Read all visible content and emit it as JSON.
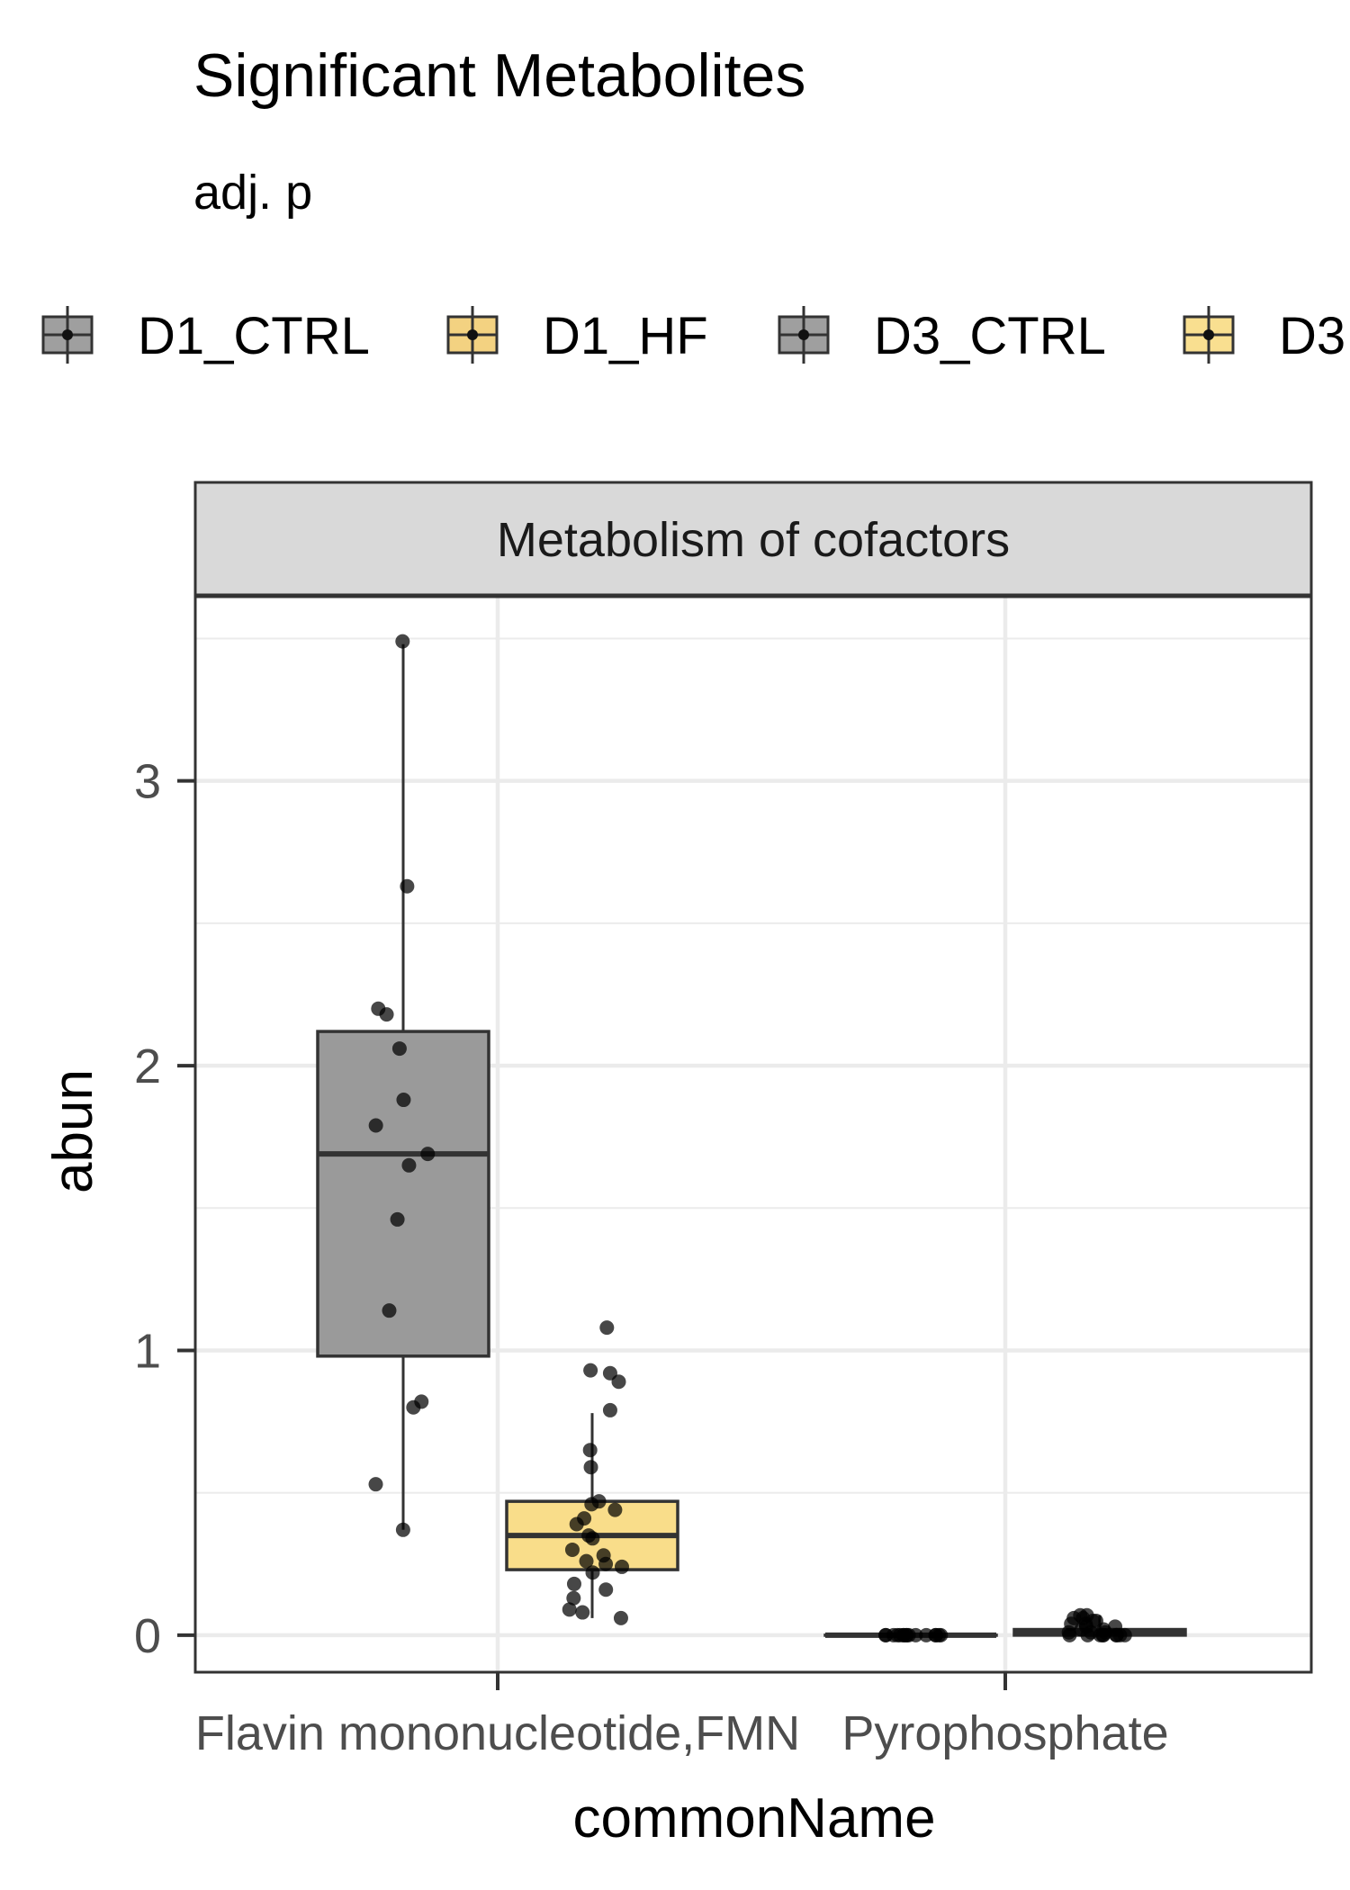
{
  "chart_data": {
    "type": "box",
    "title": "Significant Metabolites",
    "subtitle": "adj. p",
    "facet_label": "Metabolism of cofactors",
    "xlabel": "commonName",
    "ylabel": "abun",
    "categories": [
      "Flavin mononucleotide,FMN",
      "Pyrophosphate"
    ],
    "yticks": [
      0,
      1,
      2,
      3
    ],
    "ylim": [
      -0.13,
      3.65
    ],
    "grid": true,
    "legend_position": "top",
    "legend": [
      {
        "name": "D1_CTRL",
        "color": "#9a9a9a"
      },
      {
        "name": "D1_HF",
        "color": "#f2d07a"
      },
      {
        "name": "D3_CTRL",
        "color": "#9a9a9a"
      },
      {
        "name": "D3",
        "color": "#f9dd8a"
      }
    ],
    "boxes": [
      {
        "category": "Flavin mononucleotide,FMN",
        "group": "D1_CTRL",
        "color": "#9a9a9a",
        "whisker_low": 0.37,
        "q1": 0.98,
        "median": 1.69,
        "q3": 2.12,
        "whisker_high": 3.48,
        "points": [
          3.49,
          2.63,
          2.2,
          2.18,
          2.06,
          1.88,
          1.79,
          1.69,
          1.65,
          1.46,
          1.14,
          0.82,
          0.8,
          0.53,
          0.37
        ]
      },
      {
        "category": "Flavin mononucleotide,FMN",
        "group": "D1_HF",
        "color": "#f9dd8a",
        "whisker_low": 0.06,
        "q1": 0.23,
        "median": 0.35,
        "q3": 0.47,
        "whisker_high": 0.78,
        "points": [
          1.08,
          0.93,
          0.92,
          0.89,
          0.79,
          0.65,
          0.59,
          0.47,
          0.46,
          0.44,
          0.41,
          0.39,
          0.35,
          0.34,
          0.3,
          0.28,
          0.26,
          0.25,
          0.24,
          0.22,
          0.18,
          0.16,
          0.13,
          0.09,
          0.08,
          0.06
        ]
      },
      {
        "category": "Pyrophosphate",
        "group": "D3_CTRL",
        "color": "#9a9a9a",
        "whisker_low": 0.0,
        "q1": 0.0,
        "median": 0.0,
        "q3": 0.0,
        "whisker_high": 0.01,
        "points": [
          0.0,
          0.0,
          0.0,
          0.0,
          0.0,
          0.0,
          0.0,
          0.0,
          0.0,
          0.0,
          0.0,
          0.0,
          0.0,
          0.0,
          0.0,
          0.0
        ]
      },
      {
        "category": "Pyrophosphate",
        "group": "D3",
        "color": "#f9dd8a",
        "whisker_low": 0.0,
        "q1": 0.0,
        "median": 0.01,
        "q3": 0.02,
        "whisker_high": 0.07,
        "points": [
          0.07,
          0.07,
          0.06,
          0.06,
          0.05,
          0.05,
          0.04,
          0.04,
          0.03,
          0.03,
          0.02,
          0.02,
          0.01,
          0.01,
          0.01,
          0.0,
          0.0,
          0.0,
          0.0,
          0.0,
          0.0,
          0.0,
          0.0,
          0.0
        ]
      }
    ]
  }
}
